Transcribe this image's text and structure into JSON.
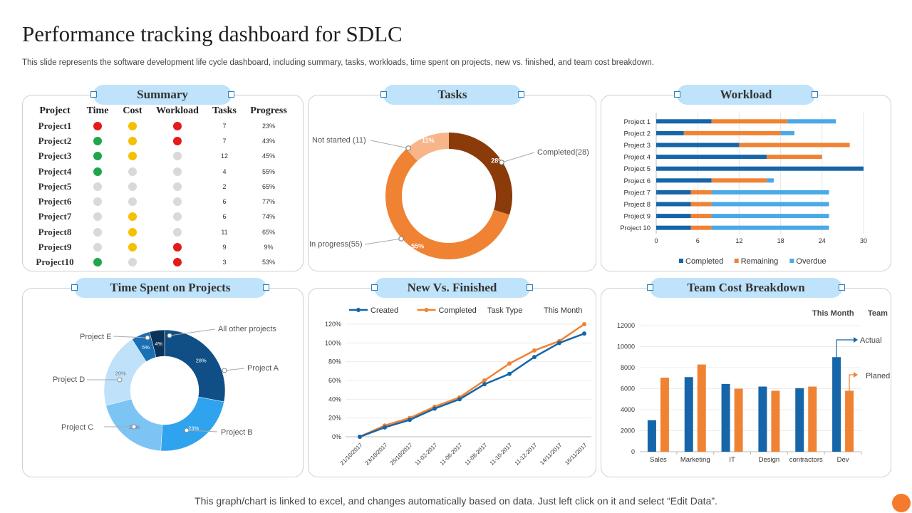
{
  "title": "Performance tracking dashboard for SDLC",
  "subtitle": "This slide represents the software development life cycle dashboard, including summary, tasks, workloads, time spent on projects, new vs. finished, and team cost breakdown.",
  "footer": "This graph/chart is linked to excel,  and changes automatically based on data. Just left click on it and select “Edit Data”.",
  "colors": {
    "red": "#e31b1b",
    "yellow": "#f5c000",
    "green": "#1fa64a",
    "grey": "#d9d9d9",
    "orange": "#f08234",
    "blue": "#1565a8",
    "lightblue": "#4aa9e6"
  },
  "panels": {
    "summary": "Summary",
    "tasks": "Tasks",
    "workload": "Workload",
    "time_spent": "Time Spent on Projects",
    "new_finished": "New Vs. Finished",
    "team_cost": "Team Cost Breakdown"
  },
  "summary": {
    "headers": [
      "Project",
      "Time",
      "Cost",
      "Workload",
      "Tasks",
      "Progress"
    ],
    "rows": [
      {
        "project": "Project1",
        "time": "red",
        "cost": "yellow",
        "workload": "red",
        "tasks": "7",
        "progress": "23%"
      },
      {
        "project": "Project2",
        "time": "green",
        "cost": "yellow",
        "workload": "red",
        "tasks": "7",
        "progress": "43%"
      },
      {
        "project": "Project3",
        "time": "green",
        "cost": "yellow",
        "workload": "grey",
        "tasks": "12",
        "progress": "45%"
      },
      {
        "project": "Project4",
        "time": "green",
        "cost": "grey",
        "workload": "grey",
        "tasks": "4",
        "progress": "55%"
      },
      {
        "project": "Project5",
        "time": "grey",
        "cost": "grey",
        "workload": "grey",
        "tasks": "2",
        "progress": "65%"
      },
      {
        "project": "Project6",
        "time": "grey",
        "cost": "grey",
        "workload": "grey",
        "tasks": "6",
        "progress": "77%"
      },
      {
        "project": "Project7",
        "time": "grey",
        "cost": "yellow",
        "workload": "grey",
        "tasks": "6",
        "progress": "74%"
      },
      {
        "project": "Project8",
        "time": "grey",
        "cost": "yellow",
        "workload": "grey",
        "tasks": "11",
        "progress": "65%"
      },
      {
        "project": "Project9",
        "time": "grey",
        "cost": "yellow",
        "workload": "red",
        "tasks": "9",
        "progress": "9%"
      },
      {
        "project": "Project10",
        "time": "green",
        "cost": "grey",
        "workload": "red",
        "tasks": "3",
        "progress": "53%"
      }
    ]
  },
  "chart_data": [
    {
      "id": "tasks",
      "type": "pie",
      "donut": true,
      "slices": [
        {
          "label": "Completed(28)",
          "value": 28,
          "pct": "28%",
          "color": "#8b3a0a"
        },
        {
          "label": "In progress(55)",
          "value": 55,
          "pct": "55%",
          "color": "#f08234"
        },
        {
          "label": "Not started (11)",
          "value": 11,
          "pct": "11%",
          "color": "#f9b58a"
        }
      ]
    },
    {
      "id": "workload",
      "type": "bar",
      "orientation": "horizontal",
      "stacked": true,
      "categories": [
        "Project 1",
        "Project 2",
        "Project 3",
        "Project 4",
        "Project 5",
        "Project 6",
        "Project 7",
        "Project 8",
        "Project 9",
        "Project 10"
      ],
      "series": [
        {
          "name": "Completed",
          "color": "#1565a8",
          "values": [
            8,
            4,
            12,
            16,
            30,
            8,
            5,
            5,
            5,
            5
          ]
        },
        {
          "name": "Remaining",
          "color": "#f08234",
          "values": [
            11,
            14,
            16,
            8,
            0,
            8,
            3,
            3,
            3,
            3
          ]
        },
        {
          "name": "Overdue",
          "color": "#4aa9e6",
          "values": [
            7,
            2,
            0,
            0,
            0,
            1,
            17,
            17,
            17,
            17
          ]
        }
      ],
      "xlim": [
        0,
        30
      ],
      "xticks": [
        "0",
        "6",
        "12",
        "18",
        "24",
        "30"
      ]
    },
    {
      "id": "time_spent",
      "type": "pie",
      "donut": true,
      "slices": [
        {
          "label": "Project A",
          "value": 28,
          "pct": "28%",
          "color": "#0f4f86"
        },
        {
          "label": "Project B",
          "value": 23,
          "pct": "23%",
          "color": "#2fa3ee"
        },
        {
          "label": "Project C",
          "value": 20,
          "pct": "20%",
          "color": "#7cc4f4"
        },
        {
          "label": "Project D",
          "value": 20,
          "pct": "20%",
          "color": "#bfe1f9"
        },
        {
          "label": "Project E",
          "value": 5,
          "pct": "5%",
          "color": "#1a6fb5"
        },
        {
          "label": "All other projects",
          "value": 4,
          "pct": "4%",
          "color": "#0b3358"
        }
      ]
    },
    {
      "id": "new_finished",
      "type": "line",
      "legend": [
        "Created",
        "Completed"
      ],
      "extra_labels": [
        "Task Type",
        "This Month"
      ],
      "categories": [
        "21/10/2017",
        "23/10/2017",
        "25/10/2017",
        "11-02-2017",
        "11-06-2017",
        "11-08-2017",
        "11-10-2017",
        "11-12-2017",
        "14/11/2017",
        "16/11/2017"
      ],
      "series": [
        {
          "name": "Created",
          "color": "#1565a8",
          "values": [
            0,
            10,
            18,
            30,
            40,
            56,
            67,
            85,
            100,
            110
          ]
        },
        {
          "name": "Completed",
          "color": "#f08234",
          "values": [
            0,
            12,
            20,
            32,
            42,
            60,
            78,
            92,
            102,
            120
          ]
        }
      ],
      "ylim": [
        0,
        120
      ],
      "yticks": [
        "0%",
        "20%",
        "40%",
        "60%",
        "80%",
        "100%",
        "120%"
      ]
    },
    {
      "id": "team_cost",
      "type": "bar",
      "header": [
        "This Month",
        "Team"
      ],
      "categories": [
        "Sales",
        "Marketing",
        "IT",
        "Design",
        "contractors",
        "Dev"
      ],
      "series": [
        {
          "name": "Actual",
          "color": "#1565a8",
          "values": [
            3000,
            7100,
            6450,
            6200,
            6050,
            9000
          ]
        },
        {
          "name": "Planed",
          "color": "#f08234",
          "values": [
            7050,
            8300,
            6000,
            5800,
            6200,
            5800
          ]
        }
      ],
      "ylim": [
        0,
        12000
      ],
      "yticks": [
        "0",
        "2000",
        "4000",
        "6000",
        "8000",
        "10000",
        "12000"
      ]
    }
  ]
}
